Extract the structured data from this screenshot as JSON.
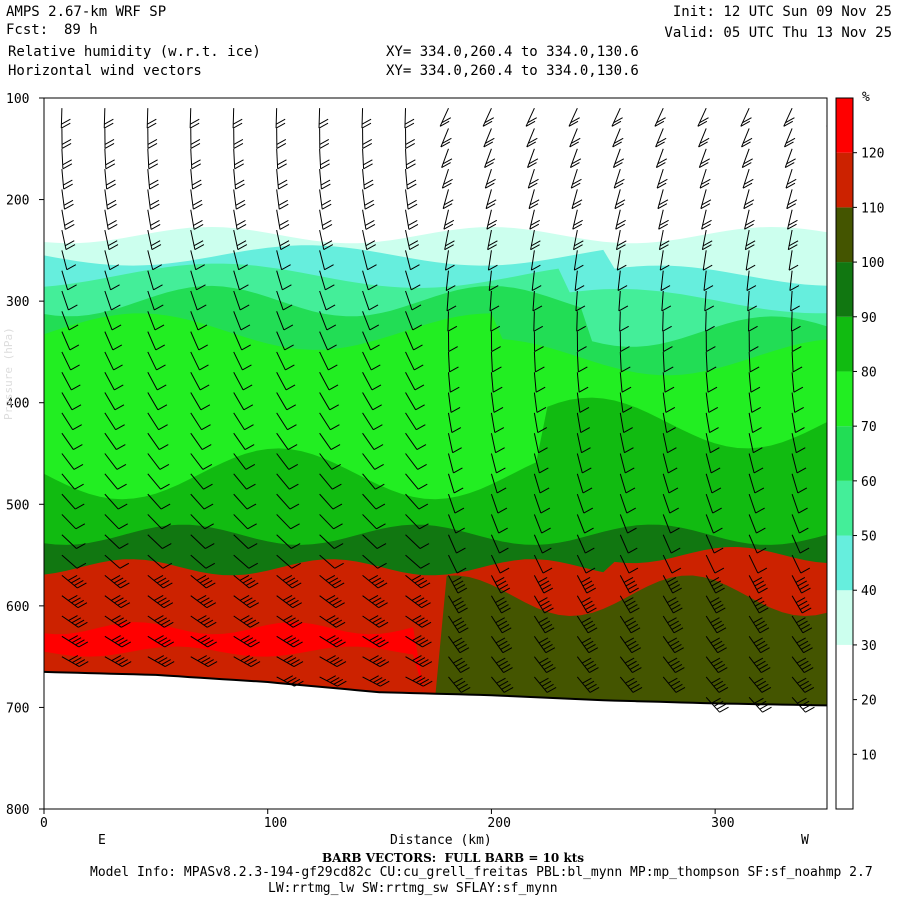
{
  "header": {
    "model": "AMPS 2.67-km WRF SP",
    "init": "Init: 12 UTC Sun 09 Nov 25",
    "fcst_label": "Fcst:",
    "fcst_value": "89 h",
    "valid": "Valid: 05 UTC Thu 13 Nov 25",
    "field1": "Relative humidity (w.r.t. ice)",
    "field2": "Horizontal wind vectors",
    "xy1": "XY= 334.0,260.4 to 334.0,130.6",
    "xy2": "XY= 334.0,260.4 to 334.0,130.6"
  },
  "footer": {
    "barb_note": "BARB VECTORS:  FULL BARB = 10 kts",
    "model_info": "Model Info: MPASv8.2.3-194-gf29cd82c CU:cu_grell_freitas PBL:bl_mynn MP:mp_thompson SF:sf_noahmp 2.7",
    "model_info2": "LW:rrtmg_lw SW:rrtmg_sw SFLAY:sf_mynn"
  },
  "colors": {
    "c20": "#ffffff",
    "c30": "#ccffee",
    "c40": "#66eedd",
    "c50": "#44ee99",
    "c60": "#22dd55",
    "c70": "#22ee22",
    "c80": "#11bb11",
    "c90": "#117711",
    "c100": "#445500",
    "c110": "#cc2200",
    "c120": "#ff0000"
  },
  "chart_data": {
    "type": "heatmap",
    "xlabel": "Distance (km)",
    "xlim": [
      0,
      350
    ],
    "xticks": [
      "0",
      "100",
      "200",
      "300"
    ],
    "xtick_values": [
      0,
      100,
      200,
      300
    ],
    "x_left_label": "E",
    "x_right_label": "W",
    "ylabel": "Pressure (hPa)",
    "ylim": [
      800,
      100
    ],
    "yticks": [
      "100",
      "200",
      "300",
      "400",
      "500",
      "600",
      "700",
      "800"
    ],
    "ytick_values": [
      100,
      200,
      300,
      400,
      500,
      600,
      700,
      800
    ],
    "colorbar_unit": "%",
    "colorbar_labels": [
      "10",
      "20",
      "30",
      "40",
      "50",
      "60",
      "70",
      "80",
      "90",
      "100",
      "110",
      "120"
    ],
    "colorbar_levels": [
      10,
      20,
      30,
      40,
      50,
      60,
      70,
      80,
      90,
      100,
      110,
      120
    ],
    "rh_layers_hpa": [
      {
        "from": 100,
        "to": 235,
        "range": "<30"
      },
      {
        "from": 235,
        "to": 260,
        "range": "30-40"
      },
      {
        "from": 260,
        "to": 330,
        "range": "40-60"
      },
      {
        "from": 330,
        "to": 520,
        "range": "60-90"
      },
      {
        "from": 520,
        "to": 560,
        "range": "80-100"
      },
      {
        "from": 560,
        "to": 690,
        "range": "100-130"
      }
    ],
    "surface_pressure": {
      "x": [
        0,
        50,
        100,
        150,
        200,
        250,
        300,
        350
      ],
      "p": [
        665,
        668,
        675,
        685,
        688,
        693,
        696,
        698
      ]
    }
  }
}
